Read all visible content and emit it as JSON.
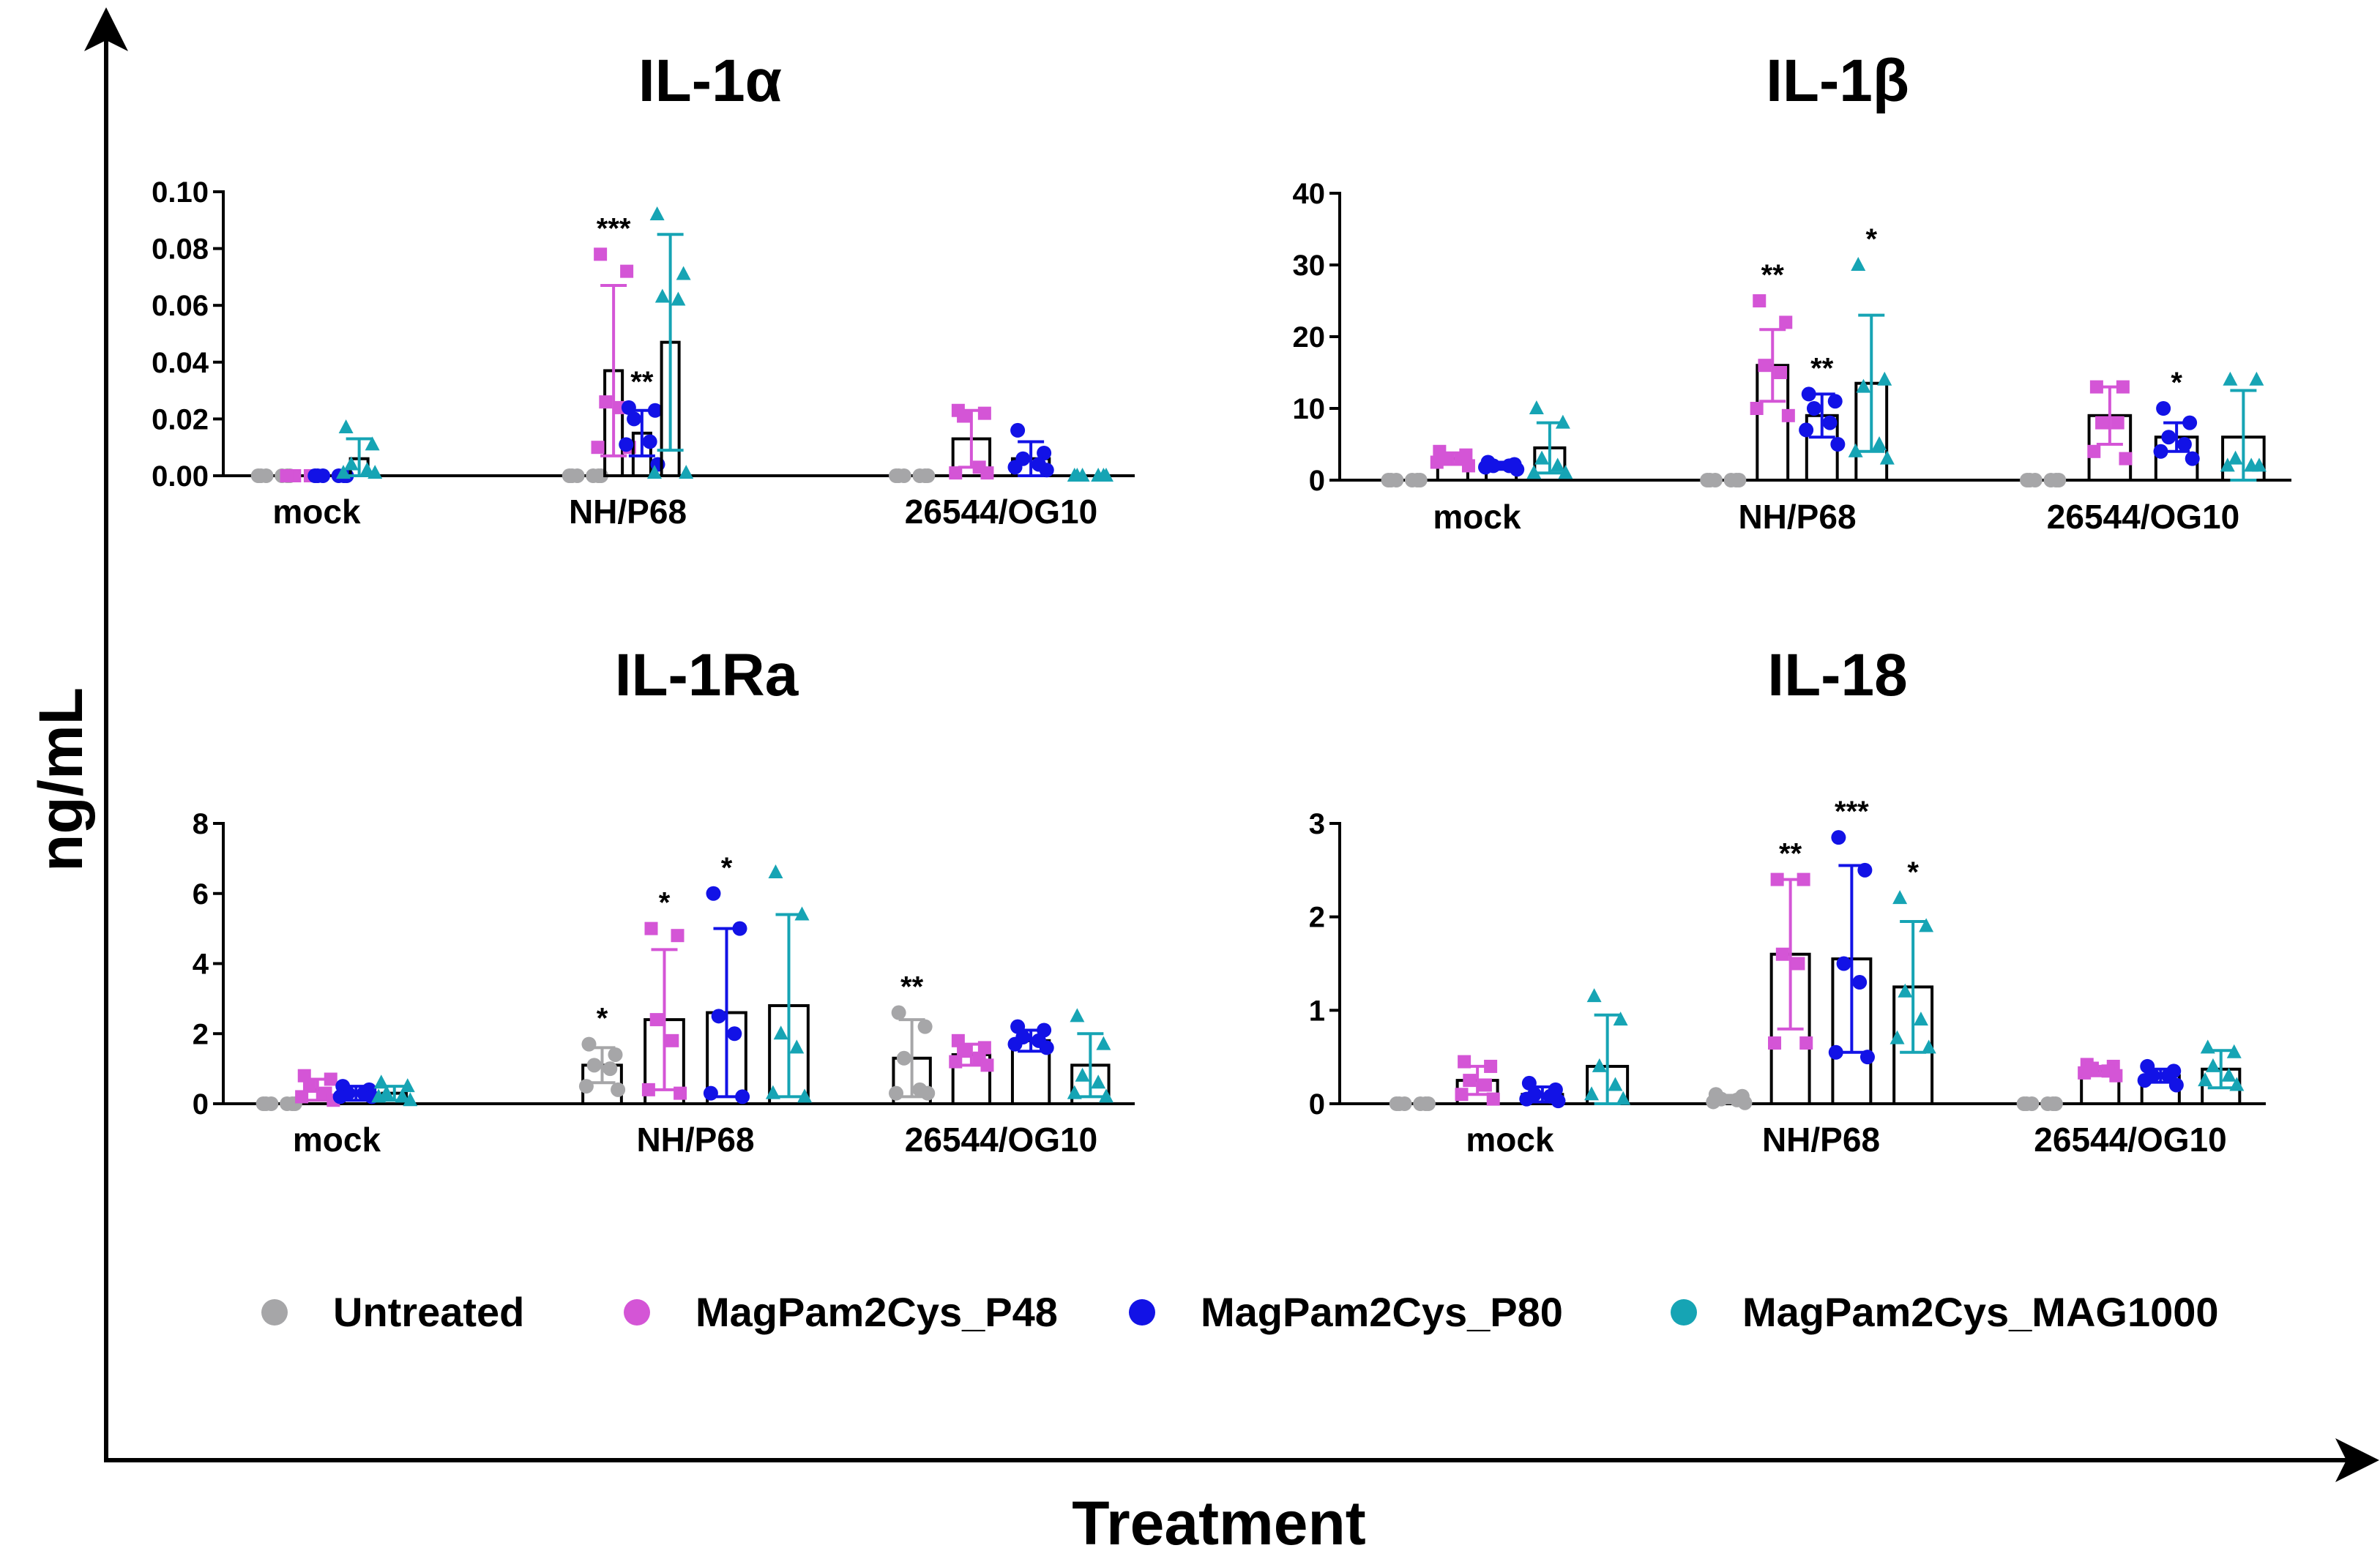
{
  "figure": {
    "ylabel": "ng/mL",
    "xlabel": "Treatment"
  },
  "legend": [
    {
      "name": "Untreated",
      "color": "#a6a6a8"
    },
    {
      "name": "MagPam2Cys_P48",
      "color": "#d455d6"
    },
    {
      "name": "MagPam2Cys_P80",
      "color": "#1212e6"
    },
    {
      "name": "MagPam2Cys_MAG1000",
      "color": "#16a4b4"
    }
  ],
  "chart_data": [
    {
      "type": "bar",
      "title": "IL-1α",
      "categories": [
        "mock",
        "NH/P68",
        "26544/OG10"
      ],
      "ylim": [
        0,
        0.1
      ],
      "yticks": [
        "0.00",
        "0.02",
        "0.04",
        "0.06",
        "0.08",
        "0.10"
      ],
      "series": [
        {
          "name": "Untreated",
          "values": [
            0,
            0,
            0
          ],
          "errors": [
            0,
            0,
            0
          ],
          "points": [
            [
              0,
              0,
              0,
              0,
              0,
              0
            ],
            [
              0,
              0,
              0,
              0,
              0,
              0
            ],
            [
              0,
              0,
              0,
              0,
              0,
              0
            ]
          ],
          "significance": [
            "",
            "",
            ""
          ]
        },
        {
          "name": "MagPam2Cys_P48",
          "values": [
            0,
            0.037,
            0.013
          ],
          "errors": [
            0,
            0.03,
            0.01
          ],
          "points": [
            [
              0,
              0,
              0,
              0,
              0,
              0
            ],
            [
              0.078,
              0.072,
              0.026,
              0.024,
              0.01,
              0.01
            ],
            [
              0.023,
              0.022,
              0.021,
              0.003,
              0.001,
              0.001
            ]
          ],
          "significance": [
            "",
            "***",
            ""
          ]
        },
        {
          "name": "MagPam2Cys_P80",
          "values": [
            0,
            0.015,
            0.006
          ],
          "errors": [
            0,
            0.008,
            0.006
          ],
          "points": [
            [
              0,
              0,
              0,
              0,
              0,
              0
            ],
            [
              0.024,
              0.023,
              0.02,
              0.012,
              0.011,
              0.004
            ],
            [
              0.016,
              0.008,
              0.006,
              0.004,
              0.003,
              0.002
            ]
          ],
          "significance": [
            "",
            "**",
            ""
          ]
        },
        {
          "name": "MagPam2Cys_MAG1000",
          "values": [
            0.006,
            0.047,
            0
          ],
          "errors": [
            0.007,
            0.038,
            0
          ],
          "points": [
            [
              0.017,
              0.011,
              0.004,
              0.002,
              0.001,
              0.001
            ],
            [
              0.092,
              0.071,
              0.063,
              0.062,
              0.001,
              0.001
            ],
            [
              0,
              0,
              0,
              0,
              0,
              0
            ]
          ],
          "significance": [
            "",
            "",
            ""
          ]
        }
      ]
    },
    {
      "type": "bar",
      "title": "IL-1β",
      "categories": [
        "mock",
        "NH/P68",
        "26544/OG10"
      ],
      "ylim": [
        0,
        40
      ],
      "yticks": [
        "0",
        "10",
        "20",
        "30",
        "40"
      ],
      "series": [
        {
          "name": "Untreated",
          "values": [
            0,
            0,
            0
          ],
          "errors": [
            0,
            0,
            0
          ],
          "points": [
            [
              0,
              0,
              0,
              0,
              0,
              0
            ],
            [
              0,
              0,
              0,
              0,
              0,
              0
            ],
            [
              0,
              0,
              0,
              0,
              0,
              0
            ]
          ],
          "significance": [
            "",
            "",
            ""
          ]
        },
        {
          "name": "MagPam2Cys_P48",
          "values": [
            3,
            16,
            9
          ],
          "errors": [
            0.8,
            5,
            4
          ],
          "points": [
            [
              4,
              3.5,
              3,
              3,
              2.5,
              2
            ],
            [
              25,
              22,
              16,
              15,
              10,
              9
            ],
            [
              13,
              13,
              8,
              8,
              4,
              3
            ]
          ],
          "significance": [
            "",
            "**",
            ""
          ]
        },
        {
          "name": "MagPam2Cys_P80",
          "values": [
            2,
            9,
            6
          ],
          "errors": [
            0.5,
            3,
            2
          ],
          "points": [
            [
              2.5,
              2.2,
              2,
              2,
              1.8,
              1.5
            ],
            [
              12,
              11,
              10,
              8,
              7,
              5
            ],
            [
              10,
              8,
              6,
              5,
              4,
              3
            ]
          ],
          "significance": [
            "",
            "**",
            "*"
          ]
        },
        {
          "name": "MagPam2Cys_MAG1000",
          "values": [
            4.5,
            13.5,
            6
          ],
          "errors": [
            3.5,
            9.5,
            6.5
          ],
          "points": [
            [
              10,
              8,
              3,
              2,
              1,
              1
            ],
            [
              30,
              14,
              13,
              5,
              4,
              3
            ],
            [
              14,
              14,
              3,
              2,
              2,
              2
            ]
          ],
          "significance": [
            "",
            "*",
            ""
          ]
        }
      ]
    },
    {
      "type": "bar",
      "title": "IL-1Ra",
      "categories": [
        "mock",
        "NH/P68",
        "26544/OG10"
      ],
      "ylim": [
        0,
        8
      ],
      "yticks": [
        "0",
        "2",
        "4",
        "6",
        "8"
      ],
      "series": [
        {
          "name": "Untreated",
          "values": [
            0,
            1.1,
            1.3
          ],
          "errors": [
            0,
            0.5,
            1.1
          ],
          "points": [
            [
              0,
              0,
              0,
              0,
              0,
              0
            ],
            [
              1.7,
              1.4,
              1.1,
              1,
              0.5,
              0.4
            ],
            [
              2.6,
              2.2,
              1.3,
              0.4,
              0.3,
              0.3
            ]
          ],
          "significance": [
            "",
            "*",
            "**"
          ]
        },
        {
          "name": "MagPam2Cys_P48",
          "values": [
            0.4,
            2.4,
            1.4
          ],
          "errors": [
            0.3,
            2,
            0.3
          ],
          "points": [
            [
              0.8,
              0.7,
              0.5,
              0.3,
              0.2,
              0.1
            ],
            [
              5,
              4.8,
              2.4,
              1.8,
              0.4,
              0.3
            ],
            [
              1.8,
              1.6,
              1.5,
              1.3,
              1.2,
              1.1
            ]
          ],
          "significance": [
            "",
            "*",
            ""
          ]
        },
        {
          "name": "MagPam2Cys_P80",
          "values": [
            0.3,
            2.6,
            1.8
          ],
          "errors": [
            0.2,
            2.4,
            0.3
          ],
          "points": [
            [
              0.5,
              0.4,
              0.3,
              0.3,
              0.2,
              0.2
            ],
            [
              6,
              5,
              2.5,
              2,
              0.3,
              0.2
            ],
            [
              2.2,
              2.1,
              1.9,
              1.8,
              1.7,
              1.6
            ]
          ],
          "significance": [
            "",
            "*",
            ""
          ]
        },
        {
          "name": "MagPam2Cys_MAG1000",
          "values": [
            0.3,
            2.8,
            1.1
          ],
          "errors": [
            0.2,
            2.6,
            0.9
          ],
          "points": [
            [
              0.6,
              0.5,
              0.3,
              0.2,
              0.2,
              0.1
            ],
            [
              6.6,
              5.4,
              2,
              1.6,
              0.3,
              0.2
            ],
            [
              2.5,
              1.7,
              0.8,
              0.6,
              0.3,
              0.2
            ]
          ],
          "significance": [
            "",
            "",
            ""
          ]
        }
      ]
    },
    {
      "type": "bar",
      "title": "IL-18",
      "categories": [
        "mock",
        "NH/P68",
        "26544/OG10"
      ],
      "ylim": [
        0,
        3
      ],
      "yticks": [
        "0",
        "1",
        "2",
        "3"
      ],
      "series": [
        {
          "name": "Untreated",
          "values": [
            0,
            0.05,
            0
          ],
          "errors": [
            0,
            0.04,
            0
          ],
          "points": [
            [
              0,
              0,
              0,
              0,
              0,
              0
            ],
            [
              0.1,
              0.08,
              0.05,
              0.04,
              0.02,
              0.01
            ],
            [
              0,
              0,
              0,
              0,
              0,
              0
            ]
          ],
          "significance": [
            "",
            "",
            ""
          ]
        },
        {
          "name": "MagPam2Cys_P48",
          "values": [
            0.25,
            1.6,
            0.35
          ],
          "errors": [
            0.15,
            0.8,
            0.05
          ],
          "points": [
            [
              0.45,
              0.4,
              0.25,
              0.2,
              0.1,
              0.05
            ],
            [
              2.4,
              2.4,
              1.6,
              1.5,
              0.65,
              0.65
            ],
            [
              0.42,
              0.4,
              0.38,
              0.35,
              0.33,
              0.3
            ]
          ],
          "significance": [
            "",
            "**",
            ""
          ]
        },
        {
          "name": "MagPam2Cys_P80",
          "values": [
            0.1,
            1.55,
            0.3
          ],
          "errors": [
            0.08,
            1,
            0.07
          ],
          "points": [
            [
              0.22,
              0.15,
              0.1,
              0.08,
              0.05,
              0.03
            ],
            [
              2.85,
              2.5,
              1.5,
              1.3,
              0.55,
              0.5
            ],
            [
              0.4,
              0.35,
              0.3,
              0.3,
              0.25,
              0.2
            ]
          ],
          "significance": [
            "",
            "***",
            ""
          ]
        },
        {
          "name": "MagPam2Cys_MAG1000",
          "values": [
            0.4,
            1.25,
            0.37
          ],
          "errors": [
            0.55,
            0.7,
            0.2
          ],
          "points": [
            [
              1.15,
              0.9,
              0.4,
              0.2,
              0.1,
              0.05
            ],
            [
              2.2,
              1.9,
              1.2,
              0.9,
              0.7,
              0.6
            ],
            [
              0.6,
              0.55,
              0.4,
              0.3,
              0.25,
              0.2
            ]
          ],
          "significance": [
            "",
            "*",
            ""
          ]
        }
      ]
    }
  ]
}
